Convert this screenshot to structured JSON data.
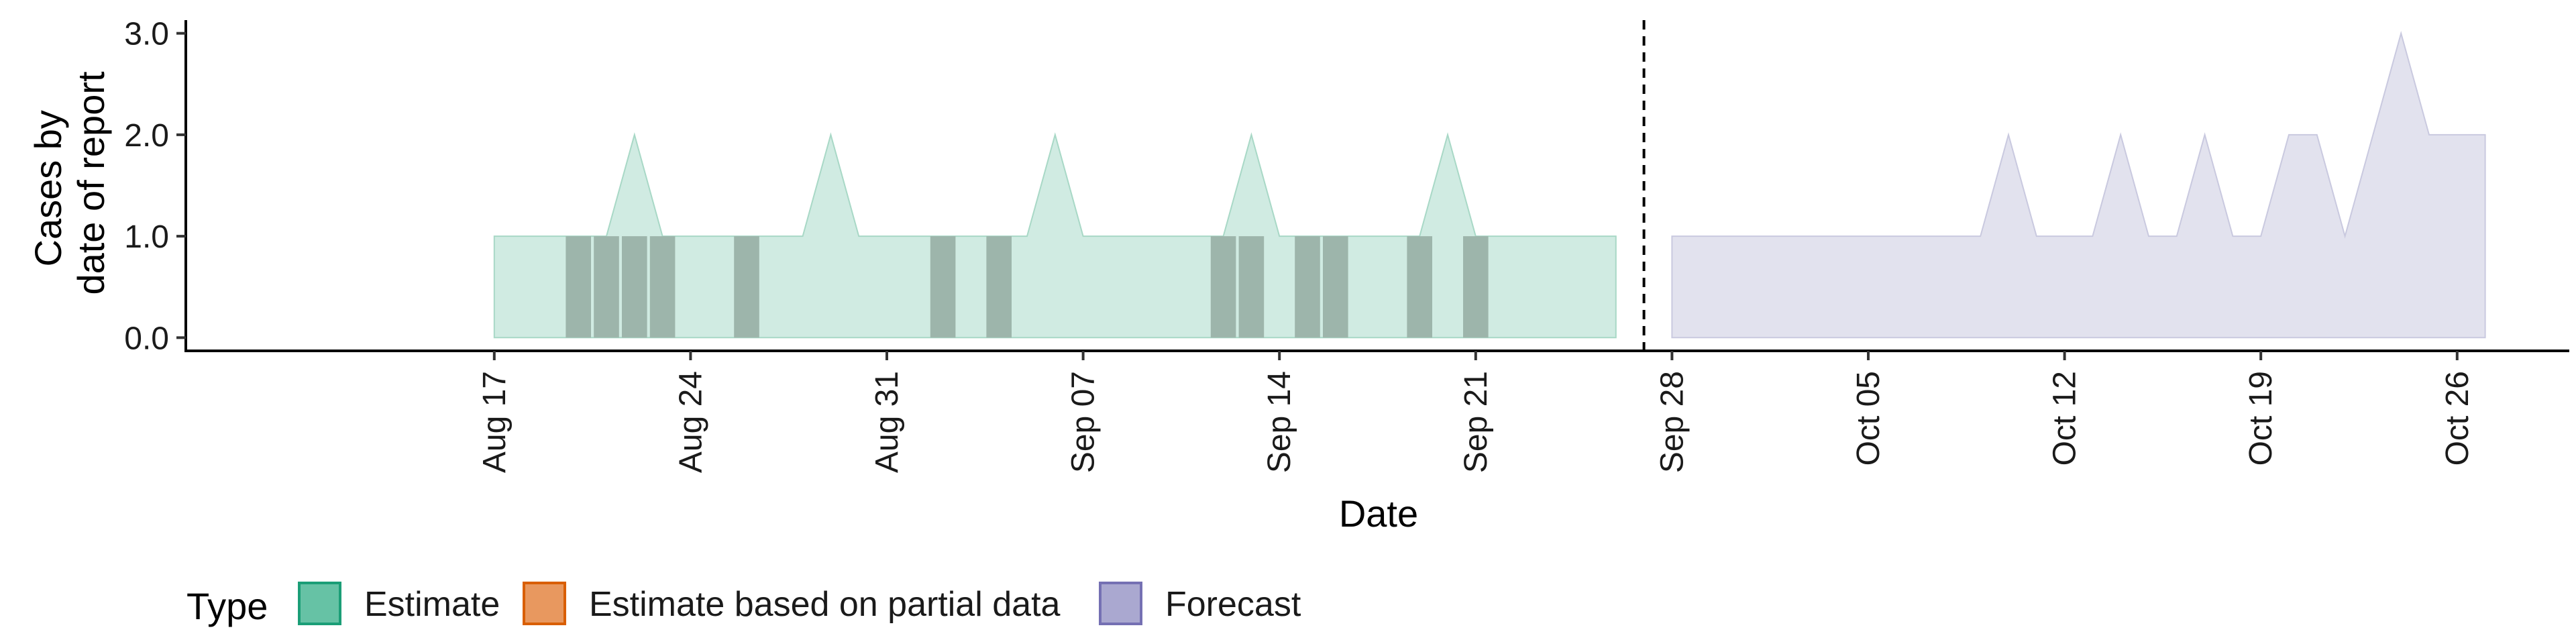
{
  "chart_data": {
    "type": "area",
    "xlabel": "Date",
    "ylabel_lines": [
      "Cases by",
      "date of report"
    ],
    "xlim": [
      "2020-08-06",
      "2020-10-30"
    ],
    "ylim": [
      -0.13,
      3.13
    ],
    "grid": false,
    "y_ticks": [
      {
        "value": 0,
        "label": "0.0"
      },
      {
        "value": 1,
        "label": "1.0"
      },
      {
        "value": 2,
        "label": "2.0"
      },
      {
        "value": 3,
        "label": "3.0"
      }
    ],
    "x_ticks": [
      {
        "date": "2020-08-17",
        "label": "Aug 17"
      },
      {
        "date": "2020-08-24",
        "label": "Aug 24"
      },
      {
        "date": "2020-08-31",
        "label": "Aug 31"
      },
      {
        "date": "2020-09-07",
        "label": "Sep 07"
      },
      {
        "date": "2020-09-14",
        "label": "Sep 14"
      },
      {
        "date": "2020-09-21",
        "label": "Sep 21"
      },
      {
        "date": "2020-09-28",
        "label": "Sep 28"
      },
      {
        "date": "2020-10-05",
        "label": "Oct 05"
      },
      {
        "date": "2020-10-12",
        "label": "Oct 12"
      },
      {
        "date": "2020-10-19",
        "label": "Oct 19"
      },
      {
        "date": "2020-10-26",
        "label": "Oct 26"
      }
    ],
    "vline_date": "2020-09-27",
    "series": [
      {
        "type_key": "estimate",
        "points": [
          {
            "date": "2020-08-17",
            "upper": 1
          },
          {
            "date": "2020-08-18",
            "upper": 1
          },
          {
            "date": "2020-08-19",
            "upper": 1
          },
          {
            "date": "2020-08-20",
            "upper": 1
          },
          {
            "date": "2020-08-21",
            "upper": 1
          },
          {
            "date": "2020-08-22",
            "upper": 2
          },
          {
            "date": "2020-08-23",
            "upper": 1
          },
          {
            "date": "2020-08-24",
            "upper": 1
          },
          {
            "date": "2020-08-25",
            "upper": 1
          },
          {
            "date": "2020-08-26",
            "upper": 1
          },
          {
            "date": "2020-08-27",
            "upper": 1
          },
          {
            "date": "2020-08-28",
            "upper": 1
          },
          {
            "date": "2020-08-29",
            "upper": 2
          },
          {
            "date": "2020-08-30",
            "upper": 1
          },
          {
            "date": "2020-08-31",
            "upper": 1
          },
          {
            "date": "2020-09-01",
            "upper": 1
          },
          {
            "date": "2020-09-02",
            "upper": 1
          },
          {
            "date": "2020-09-03",
            "upper": 1
          },
          {
            "date": "2020-09-04",
            "upper": 1
          },
          {
            "date": "2020-09-05",
            "upper": 1
          },
          {
            "date": "2020-09-06",
            "upper": 2
          },
          {
            "date": "2020-09-07",
            "upper": 1
          },
          {
            "date": "2020-09-08",
            "upper": 1
          },
          {
            "date": "2020-09-09",
            "upper": 1
          },
          {
            "date": "2020-09-10",
            "upper": 1
          },
          {
            "date": "2020-09-11",
            "upper": 1
          },
          {
            "date": "2020-09-12",
            "upper": 1
          },
          {
            "date": "2020-09-13",
            "upper": 2
          },
          {
            "date": "2020-09-14",
            "upper": 1
          },
          {
            "date": "2020-09-15",
            "upper": 1
          },
          {
            "date": "2020-09-16",
            "upper": 1
          },
          {
            "date": "2020-09-17",
            "upper": 1
          },
          {
            "date": "2020-09-18",
            "upper": 1
          },
          {
            "date": "2020-09-19",
            "upper": 1
          },
          {
            "date": "2020-09-20",
            "upper": 2
          },
          {
            "date": "2020-09-21",
            "upper": 1
          },
          {
            "date": "2020-09-22",
            "upper": 1
          },
          {
            "date": "2020-09-23",
            "upper": 1
          },
          {
            "date": "2020-09-24",
            "upper": 1
          },
          {
            "date": "2020-09-25",
            "upper": 1
          },
          {
            "date": "2020-09-26",
            "upper": 1
          }
        ]
      },
      {
        "type_key": "forecast",
        "points": [
          {
            "date": "2020-09-28",
            "upper": 1
          },
          {
            "date": "2020-09-29",
            "upper": 1
          },
          {
            "date": "2020-09-30",
            "upper": 1
          },
          {
            "date": "2020-10-01",
            "upper": 1
          },
          {
            "date": "2020-10-02",
            "upper": 1
          },
          {
            "date": "2020-10-03",
            "upper": 1
          },
          {
            "date": "2020-10-04",
            "upper": 1
          },
          {
            "date": "2020-10-05",
            "upper": 1
          },
          {
            "date": "2020-10-06",
            "upper": 1
          },
          {
            "date": "2020-10-07",
            "upper": 1
          },
          {
            "date": "2020-10-08",
            "upper": 1
          },
          {
            "date": "2020-10-09",
            "upper": 1
          },
          {
            "date": "2020-10-10",
            "upper": 2
          },
          {
            "date": "2020-10-11",
            "upper": 1
          },
          {
            "date": "2020-10-12",
            "upper": 1
          },
          {
            "date": "2020-10-13",
            "upper": 1
          },
          {
            "date": "2020-10-14",
            "upper": 2
          },
          {
            "date": "2020-10-15",
            "upper": 1
          },
          {
            "date": "2020-10-16",
            "upper": 1
          },
          {
            "date": "2020-10-17",
            "upper": 2
          },
          {
            "date": "2020-10-18",
            "upper": 1
          },
          {
            "date": "2020-10-19",
            "upper": 1
          },
          {
            "date": "2020-10-20",
            "upper": 2
          },
          {
            "date": "2020-10-21",
            "upper": 2
          },
          {
            "date": "2020-10-22",
            "upper": 1
          },
          {
            "date": "2020-10-23",
            "upper": 2
          },
          {
            "date": "2020-10-24",
            "upper": 3
          },
          {
            "date": "2020-10-25",
            "upper": 2
          },
          {
            "date": "2020-10-26",
            "upper": 2
          },
          {
            "date": "2020-10-27",
            "upper": 2
          }
        ]
      }
    ],
    "observed_bars": [
      {
        "date": "2020-08-20",
        "value": 1
      },
      {
        "date": "2020-08-21",
        "value": 1
      },
      {
        "date": "2020-08-22",
        "value": 1
      },
      {
        "date": "2020-08-23",
        "value": 1
      },
      {
        "date": "2020-08-26",
        "value": 1
      },
      {
        "date": "2020-09-02",
        "value": 1
      },
      {
        "date": "2020-09-04",
        "value": 1
      },
      {
        "date": "2020-09-12",
        "value": 1
      },
      {
        "date": "2020-09-13",
        "value": 1
      },
      {
        "date": "2020-09-15",
        "value": 1
      },
      {
        "date": "2020-09-16",
        "value": 1
      },
      {
        "date": "2020-09-19",
        "value": 1
      },
      {
        "date": "2020-09-21",
        "value": 1
      }
    ],
    "colors": {
      "estimate_fill": "#d0ebe2",
      "estimate_line": "#a8d8c6",
      "forecast_fill": "#e2e2ee",
      "forecast_line": "#c9c9df",
      "bar": "#9db5ab",
      "legend_estimate": "#66c2a5",
      "legend_estimate_border": "#1b9e77",
      "legend_partial": "#e8985f",
      "legend_partial_border": "#d95f02",
      "legend_forecast": "#aaa8d0",
      "legend_forecast_border": "#7570b3"
    },
    "legend": {
      "position": "bottom-left",
      "title": "Type",
      "items": [
        {
          "key": "estimate",
          "label": "Estimate"
        },
        {
          "key": "partial",
          "label": "Estimate based on partial data"
        },
        {
          "key": "forecast",
          "label": "Forecast"
        }
      ]
    }
  }
}
